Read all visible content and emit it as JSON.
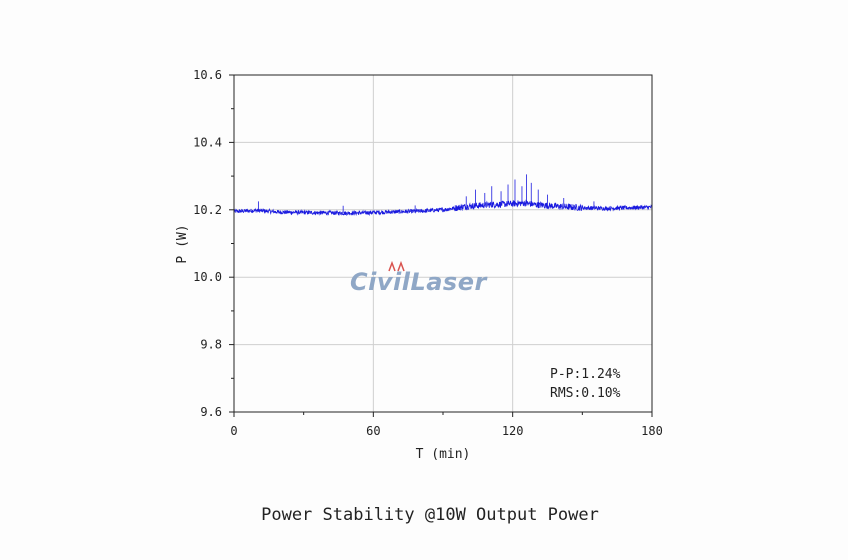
{
  "caption": "Power Stability @10W Output Power",
  "watermark": {
    "text": "CivilLaser",
    "color": "#8fa7c6"
  },
  "chart_data": {
    "type": "line",
    "title": "",
    "xlabel": "T (min)",
    "ylabel": "P (W)",
    "xlim": [
      0,
      180
    ],
    "ylim": [
      9.6,
      10.6
    ],
    "xticks": [
      0,
      60,
      120,
      180
    ],
    "xtick_labels": [
      "0",
      "60",
      "120",
      "180"
    ],
    "yticks": [
      9.6,
      9.8,
      10.0,
      10.2,
      10.4,
      10.6
    ],
    "ytick_labels": [
      "9.6",
      "9.8",
      "10.0",
      "10.2",
      "10.4",
      "10.6"
    ],
    "grid": true,
    "color": "#1a1adf",
    "annotations": [
      "P-P:1.24%",
      "RMS:0.10%"
    ],
    "series": [
      {
        "x": [
          0,
          10,
          20,
          30,
          40,
          50,
          60,
          70,
          80,
          90,
          100,
          110,
          120,
          125,
          130,
          140,
          150,
          160,
          170,
          180
        ],
        "values": [
          10.195,
          10.198,
          10.193,
          10.192,
          10.191,
          10.19,
          10.192,
          10.194,
          10.196,
          10.2,
          10.21,
          10.215,
          10.218,
          10.22,
          10.215,
          10.21,
          10.206,
          10.204,
          10.206,
          10.208
        ],
        "noise": 0.006,
        "spikes": [
          {
            "x": 10.5,
            "y": 10.225
          },
          {
            "x": 47,
            "y": 10.212
          },
          {
            "x": 78,
            "y": 10.213
          },
          {
            "x": 100,
            "y": 10.24
          },
          {
            "x": 104,
            "y": 10.26
          },
          {
            "x": 108,
            "y": 10.25
          },
          {
            "x": 111,
            "y": 10.27
          },
          {
            "x": 115,
            "y": 10.255
          },
          {
            "x": 118,
            "y": 10.275
          },
          {
            "x": 121,
            "y": 10.29
          },
          {
            "x": 124,
            "y": 10.27
          },
          {
            "x": 126,
            "y": 10.305
          },
          {
            "x": 128,
            "y": 10.28
          },
          {
            "x": 131,
            "y": 10.26
          },
          {
            "x": 135,
            "y": 10.245
          },
          {
            "x": 142,
            "y": 10.235
          },
          {
            "x": 155,
            "y": 10.225
          }
        ]
      }
    ]
  }
}
